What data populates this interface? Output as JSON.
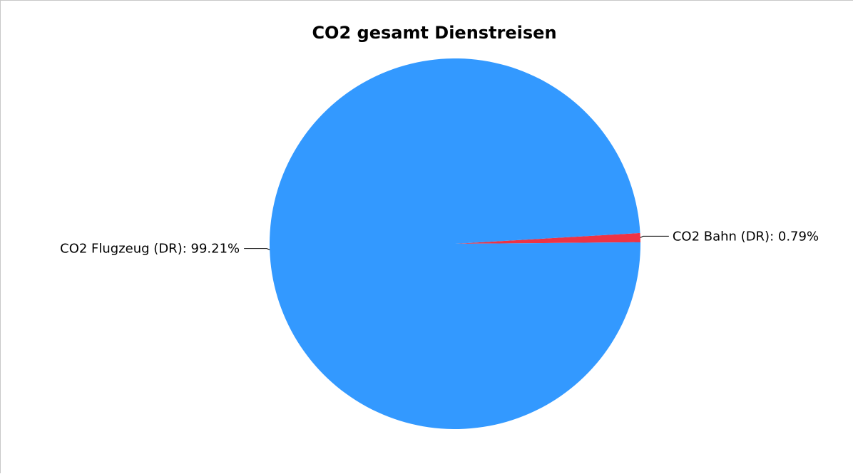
{
  "chart_data": {
    "type": "pie",
    "title": "CO2 gesamt Dienstreisen",
    "slices": [
      {
        "label": "CO2 Flugzeug (DR): 99.21%",
        "name": "CO2 Flugzeug (DR)",
        "value": 99.21,
        "color": "#3399ff"
      },
      {
        "label": "CO2 Bahn (DR): 0.79%",
        "name": "CO2 Bahn (DR)",
        "value": 0.79,
        "color": "#ee3344"
      }
    ],
    "legend": "none",
    "labels": "outside-with-leader-lines"
  }
}
